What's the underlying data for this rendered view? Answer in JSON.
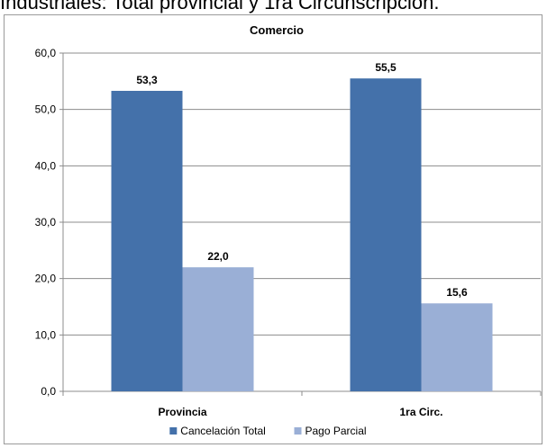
{
  "caption": "Industriales: Total provincial y 1ra Circunscripción.",
  "colors": {
    "series1": "#4471aa",
    "series2": "#9aafd6",
    "grid": "#8c8c8c"
  },
  "chart_data": {
    "type": "bar",
    "title": "Comercio",
    "categories": [
      "Provincia",
      "1ra Circ."
    ],
    "series": [
      {
        "name": "Cancelación Total",
        "values": [
          53.3,
          55.5
        ],
        "labels": [
          "53,3",
          "55,5"
        ]
      },
      {
        "name": "Pago Parcial",
        "values": [
          22.0,
          15.6
        ],
        "labels": [
          "22,0",
          "15,6"
        ]
      }
    ],
    "ylim": [
      0,
      60
    ],
    "yticks": [
      0,
      10,
      20,
      30,
      40,
      50,
      60
    ],
    "ytick_labels": [
      "0,0",
      "10,0",
      "20,0",
      "30,0",
      "40,0",
      "50,0",
      "60,0"
    ],
    "grid": true,
    "legend_position": "bottom"
  }
}
